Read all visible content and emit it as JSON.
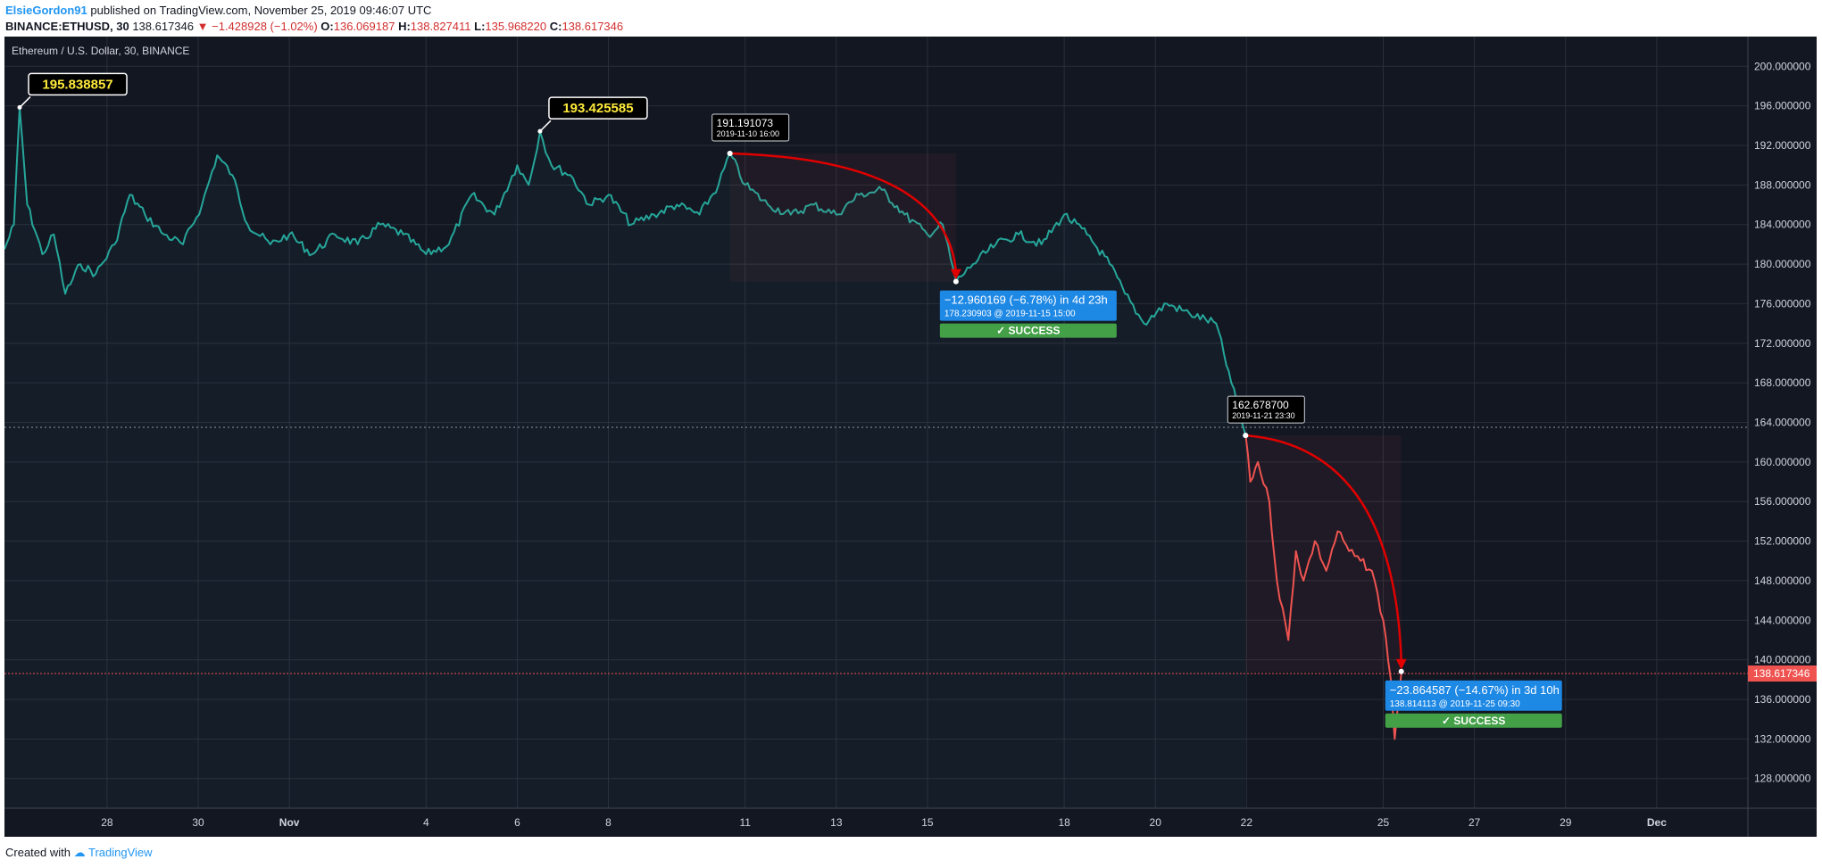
{
  "header": {
    "author": "ElsieGordon91",
    "published_text": "published on TradingView.com, November 25, 2019 09:46:07 UTC",
    "symbol_line": "BINANCE:ETHUSD, 30",
    "last": "138.617346",
    "change": "−1.428928 (−1.02%)",
    "open_label": "O:",
    "open": "136.069187",
    "high_label": "H:",
    "high": "138.827411",
    "low_label": "L:",
    "low": "135.968220",
    "close_label": "C:",
    "close": "138.617346"
  },
  "footer": {
    "created_with": "Created with",
    "brand": "TradingView"
  },
  "colors": {
    "background": "#131722",
    "up_line": "#26a69a",
    "down_line": "#ef5350",
    "arrow": "#e00000",
    "label_blue": "#1e88e5",
    "success_green": "#43a047",
    "price_badge": "#ef5350",
    "yellow_text": "#ffeb3b"
  },
  "chart_data": {
    "type": "line",
    "title": "Ethereum / U.S. Dollar, 30, BINANCE",
    "ylim": [
      125,
      203
    ],
    "y_ticks": [
      128,
      132,
      136,
      140,
      144,
      148,
      152,
      156,
      160,
      164,
      168,
      172,
      176,
      180,
      184,
      188,
      192,
      196,
      200
    ],
    "y_tick_labels": [
      "128.000000",
      "132.000000",
      "136.000000",
      "140.000000",
      "144.000000",
      "148.000000",
      "152.000000",
      "156.000000",
      "160.000000",
      "164.000000",
      "168.000000",
      "172.000000",
      "176.000000",
      "180.000000",
      "184.000000",
      "188.000000",
      "192.000000",
      "196.000000",
      "200.000000"
    ],
    "x_range": [
      "2019-10-25 18:00",
      "2019-12-03 00:00"
    ],
    "x_ticks": [
      {
        "label": "28",
        "date": "2019-10-28"
      },
      {
        "label": "30",
        "date": "2019-10-30"
      },
      {
        "label": "Nov",
        "date": "2019-11-01"
      },
      {
        "label": "4",
        "date": "2019-11-04"
      },
      {
        "label": "6",
        "date": "2019-11-06"
      },
      {
        "label": "8",
        "date": "2019-11-08"
      },
      {
        "label": "11",
        "date": "2019-11-11"
      },
      {
        "label": "13",
        "date": "2019-11-13"
      },
      {
        "label": "15",
        "date": "2019-11-15"
      },
      {
        "label": "18",
        "date": "2019-11-18"
      },
      {
        "label": "20",
        "date": "2019-11-20"
      },
      {
        "label": "22",
        "date": "2019-11-22"
      },
      {
        "label": "25",
        "date": "2019-11-25"
      },
      {
        "label": "27",
        "date": "2019-11-27"
      },
      {
        "label": "29",
        "date": "2019-11-29"
      },
      {
        "label": "Dec",
        "date": "2019-12-01"
      }
    ],
    "series": [
      {
        "color": "#26a69a",
        "points": [
          [
            "2019-10-25 18:00",
            181.5
          ],
          [
            "2019-10-25 23:00",
            184
          ],
          [
            "2019-10-26 02:00",
            195.8
          ],
          [
            "2019-10-26 06:00",
            186
          ],
          [
            "2019-10-26 14:00",
            181
          ],
          [
            "2019-10-26 20:00",
            183
          ],
          [
            "2019-10-27 02:00",
            177
          ],
          [
            "2019-10-27 10:00",
            180
          ],
          [
            "2019-10-27 18:00",
            179
          ],
          [
            "2019-10-28 04:00",
            182
          ],
          [
            "2019-10-28 12:00",
            187
          ],
          [
            "2019-10-28 20:00",
            185
          ],
          [
            "2019-10-29 06:00",
            183
          ],
          [
            "2019-10-29 16:00",
            182
          ],
          [
            "2019-10-30 02:00",
            186
          ],
          [
            "2019-10-30 10:00",
            191
          ],
          [
            "2019-10-30 18:00",
            189
          ],
          [
            "2019-10-31 02:00",
            184
          ],
          [
            "2019-10-31 14:00",
            182
          ],
          [
            "2019-11-01 00:00",
            183
          ],
          [
            "2019-11-01 12:00",
            181
          ],
          [
            "2019-11-02 00:00",
            183
          ],
          [
            "2019-11-02 12:00",
            182
          ],
          [
            "2019-11-03 00:00",
            184
          ],
          [
            "2019-11-03 12:00",
            183
          ],
          [
            "2019-11-04 00:00",
            181
          ],
          [
            "2019-11-04 12:00",
            182
          ],
          [
            "2019-11-05 00:00",
            187
          ],
          [
            "2019-11-05 12:00",
            185
          ],
          [
            "2019-11-06 00:00",
            190
          ],
          [
            "2019-11-06 06:00",
            188
          ],
          [
            "2019-11-06 12:00",
            193.4
          ],
          [
            "2019-11-06 18:00",
            190
          ],
          [
            "2019-11-07 04:00",
            189
          ],
          [
            "2019-11-07 14:00",
            186
          ],
          [
            "2019-11-08 00:00",
            187
          ],
          [
            "2019-11-08 12:00",
            184
          ],
          [
            "2019-11-09 00:00",
            185
          ],
          [
            "2019-11-09 12:00",
            186
          ],
          [
            "2019-11-10 00:00",
            185
          ],
          [
            "2019-11-10 10:00",
            188
          ],
          [
            "2019-11-10 16:00",
            191.2
          ],
          [
            "2019-11-11 00:00",
            188
          ],
          [
            "2019-11-11 12:00",
            186
          ],
          [
            "2019-11-12 00:00",
            185
          ],
          [
            "2019-11-12 12:00",
            186
          ],
          [
            "2019-11-13 00:00",
            185
          ],
          [
            "2019-11-13 12:00",
            187
          ],
          [
            "2019-11-14 00:00",
            187.5
          ],
          [
            "2019-11-14 12:00",
            185
          ],
          [
            "2019-11-15 00:00",
            183
          ],
          [
            "2019-11-15 08:00",
            184
          ],
          [
            "2019-11-15 15:00",
            178.2
          ],
          [
            "2019-11-16 00:00",
            180
          ],
          [
            "2019-11-16 12:00",
            182
          ],
          [
            "2019-11-17 00:00",
            183
          ],
          [
            "2019-11-17 12:00",
            182
          ],
          [
            "2019-11-18 00:00",
            185
          ],
          [
            "2019-11-18 12:00",
            183
          ],
          [
            "2019-11-19 00:00",
            180
          ],
          [
            "2019-11-19 08:00",
            177
          ],
          [
            "2019-11-19 18:00",
            174
          ],
          [
            "2019-11-20 06:00",
            176
          ],
          [
            "2019-11-20 18:00",
            175
          ],
          [
            "2019-11-21 08:00",
            174
          ],
          [
            "2019-11-21 16:00",
            168
          ],
          [
            "2019-11-21 23:30",
            162.7
          ]
        ]
      },
      {
        "color": "#ef5350",
        "points": [
          [
            "2019-11-21 23:30",
            162.7
          ],
          [
            "2019-11-22 02:00",
            158
          ],
          [
            "2019-11-22 06:00",
            160
          ],
          [
            "2019-11-22 12:00",
            156
          ],
          [
            "2019-11-22 16:00",
            148
          ],
          [
            "2019-11-22 22:00",
            142
          ],
          [
            "2019-11-23 02:00",
            151
          ],
          [
            "2019-11-23 06:00",
            148
          ],
          [
            "2019-11-23 12:00",
            152
          ],
          [
            "2019-11-23 18:00",
            149
          ],
          [
            "2019-11-24 00:00",
            153
          ],
          [
            "2019-11-24 06:00",
            151
          ],
          [
            "2019-11-24 12:00",
            150
          ],
          [
            "2019-11-24 18:00",
            149
          ],
          [
            "2019-11-25 00:00",
            144
          ],
          [
            "2019-11-25 04:00",
            138
          ],
          [
            "2019-11-25 06:00",
            132
          ],
          [
            "2019-11-25 09:30",
            138.6
          ]
        ]
      }
    ],
    "annotations": [
      {
        "type": "high_label",
        "date": "2019-10-26 02:00",
        "value": 195.838857,
        "text": "195.838857"
      },
      {
        "type": "high_label",
        "date": "2019-11-06 12:00",
        "value": 193.425585,
        "text": "193.425585"
      },
      {
        "type": "point_label",
        "date": "2019-11-10 16:00",
        "value": 191.191073,
        "text": "191.191073",
        "sub": "2019-11-10 16:00"
      },
      {
        "type": "point_label",
        "date": "2019-11-21 23:30",
        "value": 162.6787,
        "text": "162.678700",
        "sub": "2019-11-21 23:30"
      },
      {
        "type": "measure",
        "from": "2019-11-10 16:00",
        "from_value": 191.191073,
        "to": "2019-11-15 15:00",
        "to_value": 178.230903,
        "text": "−12.960169 (−6.78%) in 4d 23h",
        "sub": "178.230903 @ 2019-11-15  15:00",
        "result": "SUCCESS"
      },
      {
        "type": "measure",
        "from": "2019-11-21 23:30",
        "from_value": 162.6787,
        "to": "2019-11-25 09:30",
        "to_value": 138.814113,
        "text": "−23.864587 (−14.67%) in 3d 10h",
        "sub": "138.814113 @ 2019-11-25  09:30",
        "result": "SUCCESS"
      }
    ],
    "current_price": {
      "value": 138.617346,
      "text": "138.617346"
    },
    "hline_dotted": 163.5,
    "grid": true
  }
}
